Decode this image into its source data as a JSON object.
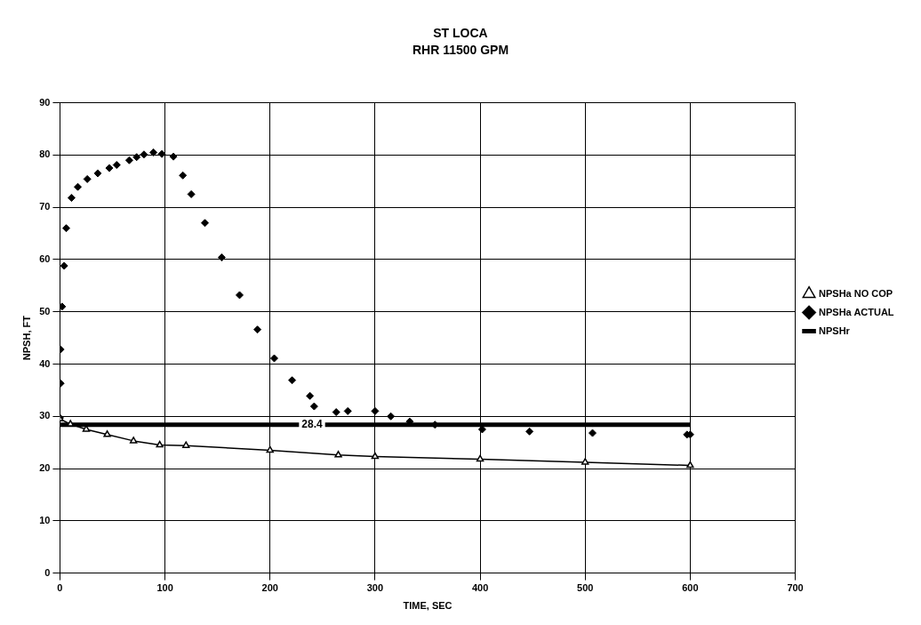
{
  "chart_data": {
    "type": "scatter",
    "title": "ST LOCA",
    "subtitle": "RHR 11500 GPM",
    "xlabel": "TIME, SEC",
    "ylabel": "NPSH, FT",
    "xlim": [
      0,
      700
    ],
    "xticks": [
      0,
      100,
      200,
      300,
      400,
      500,
      600,
      700
    ],
    "ylim": [
      0,
      90
    ],
    "yticks": [
      0,
      10,
      20,
      30,
      40,
      50,
      60,
      70,
      80,
      90
    ],
    "grid": true,
    "legend": "right",
    "series": [
      {
        "name": "NPSHa ACTUAL",
        "type": "scatter",
        "marker": "diamond",
        "color": "#000000",
        "x": [
          0,
          0.6,
          0.6,
          2,
          4,
          6,
          11,
          17,
          26,
          36,
          47,
          54,
          66,
          73,
          80,
          89,
          97,
          108,
          117,
          125,
          138,
          154,
          171,
          188,
          204,
          221,
          238,
          242,
          263,
          274,
          300,
          315,
          333,
          357,
          402,
          447,
          507,
          597,
          600
        ],
        "values": [
          29.7,
          36.3,
          42.8,
          51,
          58.8,
          66,
          71.8,
          73.9,
          75.4,
          76.5,
          77.5,
          78.1,
          79,
          79.6,
          80.1,
          80.5,
          80.2,
          79.7,
          76.1,
          72.5,
          67,
          60.4,
          53.2,
          46.6,
          41.1,
          36.9,
          33.9,
          31.9,
          30.8,
          31,
          31,
          30,
          29,
          28.4,
          27.5,
          27.1,
          26.8,
          26.5,
          26.5
        ]
      },
      {
        "name": "NPSHa NO COP",
        "type": "line",
        "marker": "triangle",
        "color": "#000000",
        "x": [
          0,
          10,
          25,
          45,
          70,
          95,
          120,
          200,
          265,
          300,
          400,
          500,
          600
        ],
        "values": [
          29.5,
          28.5,
          27.5,
          26.5,
          25.3,
          24.5,
          24.4,
          23.5,
          22.6,
          22.3,
          21.8,
          21.2,
          20.6
        ]
      },
      {
        "name": "NPSHr",
        "type": "line",
        "marker": "none",
        "color": "#000000",
        "x": [
          0,
          600
        ],
        "values": [
          28.4,
          28.4
        ]
      }
    ],
    "annotations": [
      {
        "text": "28.4",
        "x": 240,
        "y": 28.4
      }
    ]
  }
}
